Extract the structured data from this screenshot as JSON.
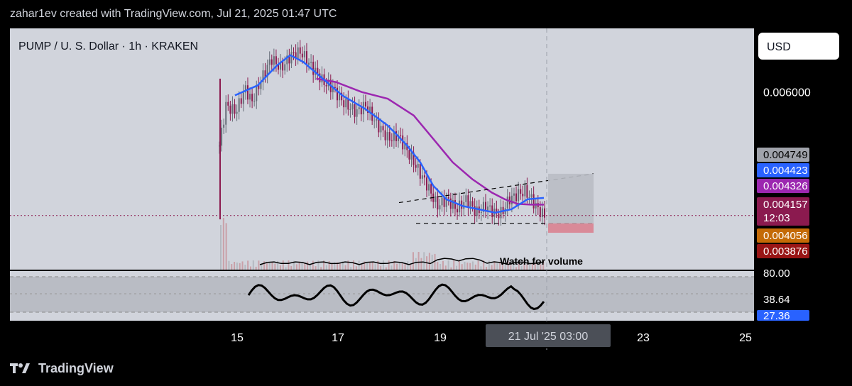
{
  "header": {
    "attribution": "zahar1ev created with TradingView.com, Jul 21, 2025 01:47 UTC"
  },
  "footer": {
    "brand": "TradingView",
    "logo_icon": "tradingview-logo-icon"
  },
  "colors": {
    "pane_background": "#d1d4dc",
    "candle_up": "#666d78",
    "candle_down": "#8b1a4f",
    "ema_blue": "#2962ff",
    "ema_purple": "#9c27b0",
    "current_price_line": "#8b1a4f",
    "label_grey": "#a0a3ab",
    "label_blue": "#2962ff",
    "label_purple": "#9c27b0",
    "label_maroon": "#8b1a4f",
    "label_orange": "#c46a06",
    "label_darkred": "#991515"
  },
  "chart_data": {
    "type": "candlestick",
    "title": "PUMP / U. S. Dollar · 1h · KRAKEN",
    "currency_button": "USD",
    "price_axis": {
      "tick_labels": [
        "0.006000"
      ],
      "tick_values": [
        0.006
      ]
    },
    "x_axis": {
      "tick_labels": [
        "15",
        "17",
        "19",
        "21 Jul '25",
        "03:00",
        "23",
        "25"
      ],
      "highlighted_label": "21 Jul '25   03:00"
    },
    "price_range_visible": [
      0.00335,
      0.00695
    ],
    "price_labels": [
      {
        "value": "0.004749",
        "color": "#a0a3ab",
        "text_color": "#000000"
      },
      {
        "value": "0.004423",
        "color": "#2962ff",
        "text_color": "#ffffff"
      },
      {
        "value": "0.004326",
        "color": "#9c27b0",
        "text_color": "#ffffff"
      },
      {
        "value": "0.004157",
        "color": "#8b1a4f",
        "text_color": "#ffffff",
        "countdown": "12:03"
      },
      {
        "value": "0.004056",
        "color": "#c46a06",
        "text_color": "#ffffff"
      },
      {
        "value": "0.003876",
        "color": "#991515",
        "text_color": "#ffffff"
      }
    ],
    "oscillator": {
      "levels": [
        "80.00"
      ],
      "labels": [
        {
          "value": "38.64",
          "color": "#000000",
          "text_color": "#ffffff"
        },
        {
          "value": "27.36",
          "color": "#2962ff",
          "text_color": "#ffffff"
        }
      ]
    },
    "annotations": {
      "volume_note": "Watch for volume",
      "pattern": "rising wedge",
      "target_box": "long position zone"
    },
    "series": {
      "price_path_points": [
        [
          0.0,
          0.0052
        ],
        [
          0.02,
          0.0058
        ],
        [
          0.05,
          0.0057
        ],
        [
          0.08,
          0.00605
        ],
        [
          0.1,
          0.00585
        ],
        [
          0.13,
          0.0062
        ],
        [
          0.16,
          0.0065
        ],
        [
          0.19,
          0.00635
        ],
        [
          0.22,
          0.00655
        ],
        [
          0.25,
          0.0066
        ],
        [
          0.28,
          0.0064
        ],
        [
          0.32,
          0.00615
        ],
        [
          0.35,
          0.00605
        ],
        [
          0.38,
          0.00585
        ],
        [
          0.42,
          0.0057
        ],
        [
          0.45,
          0.0058
        ],
        [
          0.48,
          0.00555
        ],
        [
          0.52,
          0.0053
        ],
        [
          0.55,
          0.00535
        ],
        [
          0.58,
          0.0051
        ],
        [
          0.61,
          0.00485
        ],
        [
          0.64,
          0.0046
        ],
        [
          0.67,
          0.0043
        ],
        [
          0.7,
          0.0044
        ],
        [
          0.73,
          0.00425
        ],
        [
          0.76,
          0.0044
        ],
        [
          0.79,
          0.0042
        ],
        [
          0.82,
          0.0043
        ],
        [
          0.85,
          0.00418
        ],
        [
          0.87,
          0.0042
        ],
        [
          0.89,
          0.0044
        ],
        [
          0.92,
          0.00448
        ],
        [
          0.94,
          0.00452
        ],
        [
          0.96,
          0.0044
        ],
        [
          0.98,
          0.00425
        ],
        [
          1.0,
          0.00415
        ]
      ],
      "ema_fast_points": [
        [
          0.05,
          0.00595
        ],
        [
          0.12,
          0.0061
        ],
        [
          0.18,
          0.0064
        ],
        [
          0.22,
          0.00655
        ],
        [
          0.26,
          0.00645
        ],
        [
          0.32,
          0.0062
        ],
        [
          0.38,
          0.00595
        ],
        [
          0.45,
          0.00575
        ],
        [
          0.52,
          0.0055
        ],
        [
          0.58,
          0.0052
        ],
        [
          0.62,
          0.00495
        ],
        [
          0.66,
          0.0046
        ],
        [
          0.7,
          0.0044
        ],
        [
          0.75,
          0.0043
        ],
        [
          0.8,
          0.00425
        ],
        [
          0.85,
          0.0042
        ],
        [
          0.9,
          0.00425
        ],
        [
          0.95,
          0.0044
        ],
        [
          1.0,
          0.00442
        ]
      ],
      "ema_slow_points": [
        [
          0.3,
          0.0062
        ],
        [
          0.36,
          0.00615
        ],
        [
          0.44,
          0.006
        ],
        [
          0.52,
          0.0059
        ],
        [
          0.6,
          0.00565
        ],
        [
          0.66,
          0.0053
        ],
        [
          0.72,
          0.00495
        ],
        [
          0.78,
          0.0047
        ],
        [
          0.84,
          0.0045
        ],
        [
          0.88,
          0.0044
        ],
        [
          0.92,
          0.00433
        ],
        [
          0.96,
          0.00432
        ],
        [
          1.0,
          0.00432
        ]
      ]
    }
  }
}
